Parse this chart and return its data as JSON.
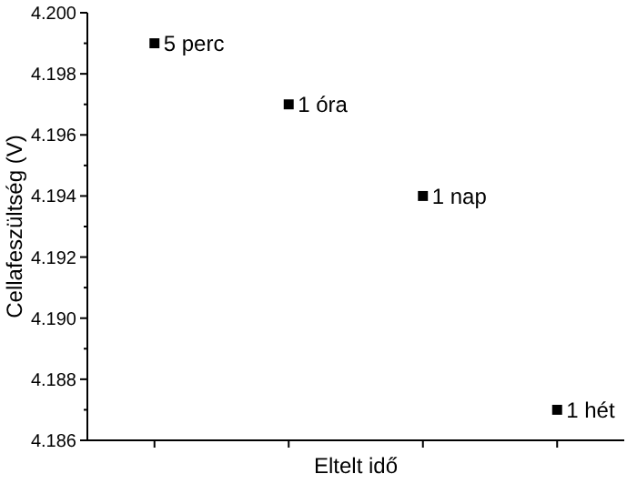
{
  "chart_data": {
    "type": "scatter",
    "xlabel": "Eltelt idő",
    "ylabel": "Cellafeszültség (V)",
    "categories": [
      null,
      null,
      null,
      null
    ],
    "series": [
      {
        "color": "#000000",
        "values": [
          4.199,
          4.197,
          4.194,
          4.187
        ]
      }
    ],
    "marker": "square",
    "ylim": [
      4.186,
      4.2
    ],
    "yticks": [
      {
        "value": 4.186,
        "label": "4.186"
      },
      {
        "value": 4.187,
        "label": null
      },
      {
        "value": 4.188,
        "label": "4.188"
      },
      {
        "value": 4.189,
        "label": null
      },
      {
        "value": 4.19,
        "label": "4.190"
      },
      {
        "value": 4.191,
        "label": null
      },
      {
        "value": 4.192,
        "label": "4.192"
      },
      {
        "value": 4.193,
        "label": null
      },
      {
        "value": 4.194,
        "label": "4.194"
      },
      {
        "value": 4.195,
        "label": null
      },
      {
        "value": 4.196,
        "label": "4.196"
      },
      {
        "value": 4.197,
        "label": null
      },
      {
        "value": 4.198,
        "label": "4.198"
      },
      {
        "value": 4.199,
        "label": null
      },
      {
        "value": 4.2,
        "label": "4.200"
      }
    ],
    "tick_labels": "y",
    "grid": false,
    "annotations": [
      "5 perc",
      "1 óra",
      "1 nap",
      "1 hét"
    ]
  }
}
